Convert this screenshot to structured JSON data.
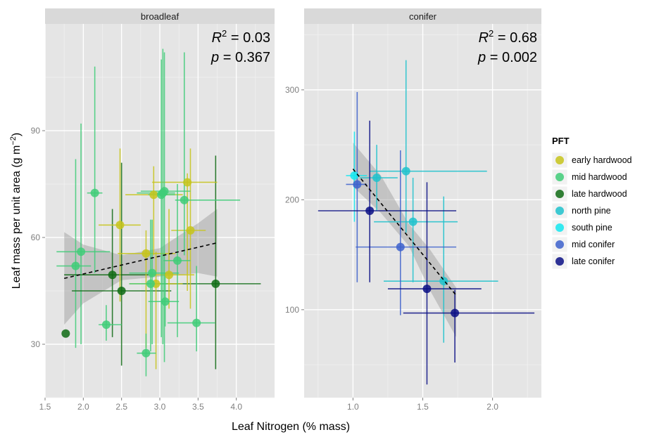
{
  "chart_data": {
    "type": "scatter",
    "xlabel": "Leaf Nitrogen (% mass)",
    "ylabel": "Leaf mass per unit area (g m",
    "ylabel_sup": "−2",
    "ylabel_close": ")",
    "legend": {
      "title": "PFT",
      "placement": "right",
      "items": [
        {
          "name": "early hardwood",
          "color": "#c7c41b"
        },
        {
          "name": "mid hardwood",
          "color": "#3fcc78"
        },
        {
          "name": "late hardwood",
          "color": "#0f6b14"
        },
        {
          "name": "north pine",
          "color": "#1fc2cc"
        },
        {
          "name": "south pine",
          "color": "#14e8f0"
        },
        {
          "name": "mid conifer",
          "color": "#3d62cc"
        },
        {
          "name": "late conifer",
          "color": "#0b0f85"
        }
      ]
    },
    "panels": [
      {
        "strip": "broadleaf",
        "stat_r2_label": "R",
        "stat_r2_sup": "2",
        "stat_r2_value": " = 0.03",
        "stat_p_label": "p",
        "stat_p_value": " = 0.367",
        "xlim": [
          1.5,
          4.5
        ],
        "ylim": [
          15,
          120
        ],
        "xticks": [
          "1.5",
          "2.0",
          "2.5",
          "3.0",
          "3.5",
          "4.0"
        ],
        "xtick_values": [
          1.5,
          2.0,
          2.5,
          3.0,
          3.5,
          4.0
        ],
        "yticks": [
          "30",
          "60",
          "90"
        ],
        "ytick_values": [
          30,
          60,
          90
        ],
        "grid": true,
        "ribbon": {
          "x": [
            1.75,
            2.0,
            2.5,
            3.0,
            3.5,
            3.75
          ],
          "upper": [
            61.5,
            58,
            55,
            57,
            64,
            68
          ],
          "lower": [
            35.5,
            41.5,
            48,
            49,
            50,
            49
          ]
        },
        "trend": {
          "x": [
            1.75,
            3.75
          ],
          "y": [
            48.5,
            58.5
          ]
        },
        "points": [
          {
            "pft": "mid hardwood",
            "x": 1.9,
            "y": 52,
            "xmin": 1.65,
            "xmax": 2.1,
            "ymin": 29,
            "ymax": 82
          },
          {
            "pft": "mid hardwood",
            "x": 1.97,
            "y": 56,
            "xmin": 1.65,
            "xmax": 2.35,
            "ymin": 30,
            "ymax": 92
          },
          {
            "pft": "mid hardwood",
            "x": 2.15,
            "y": 72.5,
            "xmin": 2.05,
            "xmax": 2.25,
            "ymin": 50,
            "ymax": 108
          },
          {
            "pft": "late hardwood",
            "x": 1.77,
            "y": 33,
            "xmin": 1.77,
            "xmax": 1.77,
            "ymin": 33,
            "ymax": 33
          },
          {
            "pft": "late hardwood",
            "x": 2.38,
            "y": 49.5,
            "xmin": 1.75,
            "xmax": 2.95,
            "ymin": 32,
            "ymax": 68
          },
          {
            "pft": "late hardwood",
            "x": 2.5,
            "y": 45,
            "xmin": 1.85,
            "xmax": 3.15,
            "ymin": 24,
            "ymax": 81
          },
          {
            "pft": "late hardwood",
            "x": 3.73,
            "y": 47,
            "xmin": 3.0,
            "xmax": 4.32,
            "ymin": 23,
            "ymax": 83
          },
          {
            "pft": "early hardwood",
            "x": 2.48,
            "y": 63.5,
            "xmin": 2.2,
            "xmax": 2.75,
            "ymin": 42,
            "ymax": 85
          },
          {
            "pft": "early hardwood",
            "x": 2.82,
            "y": 55.5,
            "xmin": 2.45,
            "xmax": 3.2,
            "ymin": 29,
            "ymax": 62
          },
          {
            "pft": "early hardwood",
            "x": 3.36,
            "y": 75.5,
            "xmin": 2.9,
            "xmax": 3.75,
            "ymin": 45,
            "ymax": 78
          },
          {
            "pft": "early hardwood",
            "x": 3.4,
            "y": 62,
            "xmin": 3.15,
            "xmax": 3.6,
            "ymin": 40,
            "ymax": 85
          },
          {
            "pft": "early hardwood",
            "x": 3.12,
            "y": 49.5,
            "xmin": 2.85,
            "xmax": 3.45,
            "ymin": 40,
            "ymax": 68
          },
          {
            "pft": "early hardwood",
            "x": 2.95,
            "y": 47,
            "xmin": 2.6,
            "xmax": 3.3,
            "ymin": 23,
            "ymax": 56
          },
          {
            "pft": "early hardwood",
            "x": 2.92,
            "y": 72,
            "xmin": 2.55,
            "xmax": 3.3,
            "ymin": 55,
            "ymax": 80
          },
          {
            "pft": "mid hardwood",
            "x": 2.3,
            "y": 35.5,
            "xmin": 2.2,
            "xmax": 2.5,
            "ymin": 31,
            "ymax": 41
          },
          {
            "pft": "mid hardwood",
            "x": 2.82,
            "y": 27.5,
            "xmin": 2.7,
            "xmax": 2.95,
            "ymin": 21,
            "ymax": 33
          },
          {
            "pft": "mid hardwood",
            "x": 2.9,
            "y": 50,
            "xmin": 2.6,
            "xmax": 3.25,
            "ymin": 30,
            "ymax": 65
          },
          {
            "pft": "mid hardwood",
            "x": 2.88,
            "y": 47,
            "xmin": 2.6,
            "xmax": 3.1,
            "ymin": 28,
            "ymax": 65
          },
          {
            "pft": "mid hardwood",
            "x": 3.04,
            "y": 72.5,
            "xmin": 2.7,
            "xmax": 3.2,
            "ymin": 30,
            "ymax": 113
          },
          {
            "pft": "mid hardwood",
            "x": 3.02,
            "y": 72,
            "xmin": 2.85,
            "xmax": 3.2,
            "ymin": 32,
            "ymax": 110
          },
          {
            "pft": "mid hardwood",
            "x": 3.06,
            "y": 73,
            "xmin": 2.75,
            "xmax": 3.4,
            "ymin": 25,
            "ymax": 112
          },
          {
            "pft": "mid hardwood",
            "x": 3.07,
            "y": 42,
            "xmin": 2.85,
            "xmax": 3.25,
            "ymin": 35,
            "ymax": 50
          },
          {
            "pft": "mid hardwood",
            "x": 3.23,
            "y": 53.5,
            "xmin": 3.05,
            "xmax": 3.4,
            "ymin": 32,
            "ymax": 75
          },
          {
            "pft": "mid hardwood",
            "x": 3.32,
            "y": 70.5,
            "xmin": 3.2,
            "xmax": 4.05,
            "ymin": 55,
            "ymax": 112
          },
          {
            "pft": "mid hardwood",
            "x": 3.48,
            "y": 36,
            "xmin": 3.1,
            "xmax": 3.72,
            "ymin": 28,
            "ymax": 52
          }
        ]
      },
      {
        "strip": "conifer",
        "stat_r2_label": "R",
        "stat_r2_sup": "2",
        "stat_r2_value": " = 0.68",
        "stat_p_label": "p",
        "stat_p_value": " = 0.002",
        "xlim": [
          0.65,
          2.35
        ],
        "ylim": [
          20,
          360
        ],
        "xticks": [
          "1.0",
          "1.5",
          "2.0"
        ],
        "xtick_values": [
          1.0,
          1.5,
          2.0
        ],
        "yticks": [
          "100",
          "200",
          "300"
        ],
        "ytick_values": [
          100,
          200,
          300
        ],
        "grid": true,
        "ribbon": {
          "x": [
            1.0,
            1.2,
            1.4,
            1.55,
            1.74
          ],
          "upper": [
            252,
            222,
            178,
            155,
            120
          ],
          "lower": [
            212,
            188,
            158,
            118,
            75
          ]
        },
        "trend": {
          "x": [
            1.0,
            1.74
          ],
          "y": [
            228,
            113
          ]
        },
        "points": [
          {
            "pft": "south pine",
            "x": 1.01,
            "y": 222,
            "xmin": 0.95,
            "xmax": 1.1,
            "ymin": 180,
            "ymax": 262
          },
          {
            "pft": "north pine",
            "x": 1.17,
            "y": 220,
            "xmin": 1.05,
            "xmax": 1.32,
            "ymin": 190,
            "ymax": 250
          },
          {
            "pft": "north pine",
            "x": 1.38,
            "y": 226,
            "xmin": 1.12,
            "xmax": 1.96,
            "ymin": 170,
            "ymax": 327
          },
          {
            "pft": "north pine",
            "x": 1.43,
            "y": 180,
            "xmin": 1.15,
            "xmax": 1.75,
            "ymin": 125,
            "ymax": 220
          },
          {
            "pft": "north pine",
            "x": 1.65,
            "y": 126,
            "xmin": 1.22,
            "xmax": 2.04,
            "ymin": 70,
            "ymax": 203
          },
          {
            "pft": "mid conifer",
            "x": 1.03,
            "y": 214,
            "xmin": 0.95,
            "xmax": 1.1,
            "ymin": 125,
            "ymax": 298
          },
          {
            "pft": "mid conifer",
            "x": 1.34,
            "y": 157,
            "xmin": 1.02,
            "xmax": 1.74,
            "ymin": 95,
            "ymax": 245
          },
          {
            "pft": "late conifer",
            "x": 1.12,
            "y": 190,
            "xmin": 0.75,
            "xmax": 1.74,
            "ymin": 125,
            "ymax": 272
          },
          {
            "pft": "late conifer",
            "x": 1.53,
            "y": 119,
            "xmin": 1.25,
            "xmax": 1.92,
            "ymin": 32,
            "ymax": 216
          },
          {
            "pft": "late conifer",
            "x": 1.73,
            "y": 97,
            "xmin": 1.36,
            "xmax": 2.3,
            "ymin": 52,
            "ymax": 118
          }
        ]
      }
    ]
  }
}
